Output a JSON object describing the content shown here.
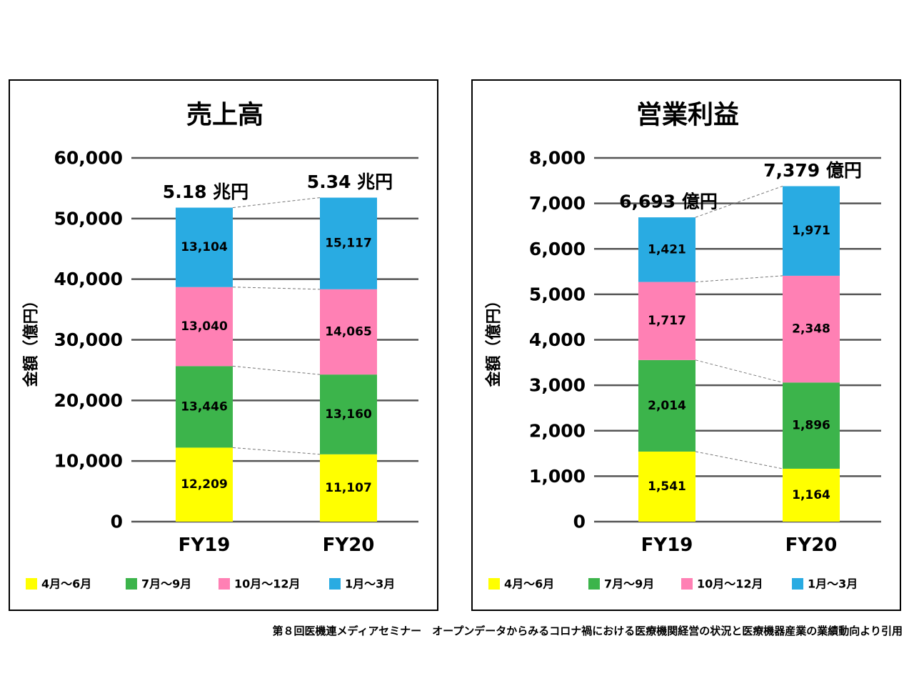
{
  "colors": {
    "q1": "#ffff00",
    "q2": "#3cb44b",
    "q3": "#ff80b4",
    "q4": "#29abe2",
    "grid": "#555555",
    "text": "#000000"
  },
  "source_note": "第８回医機連メディアセミナー　オープンデータからみるコロナ禍における医療機関経営の状況と医療機器産業の業績動向より引用",
  "chart_data": [
    {
      "type": "bar",
      "stacked": true,
      "title": "売上高",
      "ylabel": "金額（億円）",
      "xlabel": "",
      "ylim": [
        0,
        60000
      ],
      "yticks": [
        0,
        10000,
        20000,
        30000,
        40000,
        50000,
        60000
      ],
      "ytick_labels": [
        "0",
        "10,000",
        "20,000",
        "30,000",
        "40,000",
        "50,000",
        "60,000"
      ],
      "grid": true,
      "legend_position": "bottom",
      "categories": [
        "FY19",
        "FY20"
      ],
      "totals": [
        "5.18 兆円",
        "5.34 兆円"
      ],
      "series": [
        {
          "name": "4月～6月",
          "values": [
            12209,
            11107
          ],
          "labels": [
            "12,209",
            "11,107"
          ]
        },
        {
          "name": "7月～9月",
          "values": [
            13446,
            13160
          ],
          "labels": [
            "13,446",
            "13,160"
          ]
        },
        {
          "name": "10月～12月",
          "values": [
            13040,
            14065
          ],
          "labels": [
            "13,040",
            "14,065"
          ]
        },
        {
          "name": "1月～3月",
          "values": [
            13104,
            15117
          ],
          "labels": [
            "13,104",
            "15,117"
          ]
        }
      ]
    },
    {
      "type": "bar",
      "stacked": true,
      "title": "営業利益",
      "ylabel": "金額（億円）",
      "xlabel": "",
      "ylim": [
        0,
        8000
      ],
      "yticks": [
        0,
        1000,
        2000,
        3000,
        4000,
        5000,
        6000,
        7000,
        8000
      ],
      "ytick_labels": [
        "0",
        "1,000",
        "2,000",
        "3,000",
        "4,000",
        "5,000",
        "6,000",
        "7,000",
        "8,000"
      ],
      "grid": true,
      "legend_position": "bottom",
      "categories": [
        "FY19",
        "FY20"
      ],
      "totals": [
        "6,693 億円",
        "7,379 億円"
      ],
      "series": [
        {
          "name": "4月～6月",
          "values": [
            1541,
            1164
          ],
          "labels": [
            "1,541",
            "1,164"
          ]
        },
        {
          "name": "7月～9月",
          "values": [
            2014,
            1896
          ],
          "labels": [
            "2,014",
            "1,896"
          ]
        },
        {
          "name": "10月～12月",
          "values": [
            1717,
            2348
          ],
          "labels": [
            "1,717",
            "2,348"
          ]
        },
        {
          "name": "1月～3月",
          "values": [
            1421,
            1971
          ],
          "labels": [
            "1,421",
            "1,971"
          ]
        }
      ]
    }
  ]
}
